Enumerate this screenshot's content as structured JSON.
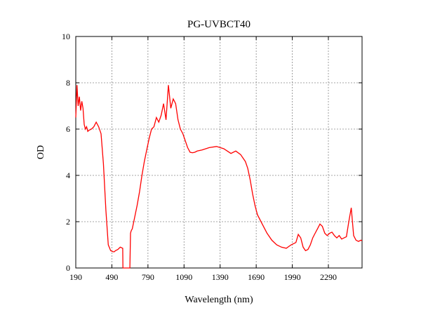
{
  "chart_data": {
    "type": "line",
    "title": "PG-UVBCT40",
    "xlabel": "Wavelength (nm)",
    "ylabel": "OD",
    "xlim": [
      190,
      2570
    ],
    "ylim": [
      0,
      10
    ],
    "x_ticks": [
      190,
      490,
      790,
      1090,
      1390,
      1690,
      1990,
      2290
    ],
    "y_ticks": [
      0,
      2,
      4,
      6,
      8,
      10
    ],
    "grid": true,
    "legend": "none",
    "colors": {
      "series": "#ff0000",
      "grid": "#888888",
      "axis": "#000000"
    },
    "series": [
      {
        "values_x": [
          190,
          200,
          210,
          220,
          230,
          240,
          250,
          260,
          270,
          280,
          290,
          300,
          320,
          340,
          360,
          380,
          400,
          420,
          440,
          460,
          480,
          500,
          510,
          520,
          540,
          560,
          580,
          582,
          600,
          640,
          645,
          650,
          660,
          680,
          700,
          720,
          740,
          760,
          780,
          800,
          820,
          840,
          860,
          880,
          900,
          920,
          940,
          960,
          980,
          1000,
          1020,
          1040,
          1060,
          1080,
          1100,
          1120,
          1140,
          1160,
          1180,
          1200,
          1240,
          1300,
          1360,
          1420,
          1480,
          1520,
          1560,
          1600,
          1620,
          1640,
          1660,
          1680,
          1700,
          1740,
          1780,
          1820,
          1860,
          1900,
          1940,
          1980,
          2020,
          2040,
          2060,
          2080,
          2100,
          2120,
          2140,
          2160,
          2180,
          2200,
          2220,
          2240,
          2260,
          2280,
          2300,
          2320,
          2340,
          2360,
          2380,
          2400,
          2420,
          2440,
          2460,
          2480,
          2500,
          2520,
          2540,
          2560,
          2570
        ],
        "values_y": [
          6.5,
          7.9,
          7.0,
          7.4,
          6.8,
          7.2,
          6.9,
          6.2,
          6.0,
          6.1,
          5.9,
          5.95,
          6.0,
          6.1,
          6.3,
          6.1,
          5.8,
          4.5,
          2.5,
          1.0,
          0.75,
          0.7,
          0.7,
          0.75,
          0.8,
          0.9,
          0.85,
          0,
          0,
          0,
          1.5,
          1.6,
          1.7,
          2.2,
          2.7,
          3.3,
          4.0,
          4.6,
          5.1,
          5.6,
          6.0,
          6.1,
          6.5,
          6.3,
          6.6,
          7.1,
          6.4,
          7.9,
          6.9,
          7.3,
          7.1,
          6.4,
          6.0,
          5.8,
          5.5,
          5.2,
          5.0,
          4.98,
          5.0,
          5.05,
          5.1,
          5.2,
          5.25,
          5.15,
          4.95,
          5.05,
          4.9,
          4.6,
          4.3,
          3.8,
          3.2,
          2.7,
          2.3,
          1.9,
          1.5,
          1.2,
          1.0,
          0.9,
          0.85,
          1.0,
          1.1,
          1.45,
          1.3,
          0.9,
          0.75,
          0.8,
          1.0,
          1.3,
          1.5,
          1.7,
          1.9,
          1.8,
          1.5,
          1.4,
          1.5,
          1.55,
          1.4,
          1.3,
          1.4,
          1.25,
          1.3,
          1.35,
          2.0,
          2.6,
          1.4,
          1.2,
          1.15,
          1.2,
          1.18
        ]
      }
    ]
  }
}
